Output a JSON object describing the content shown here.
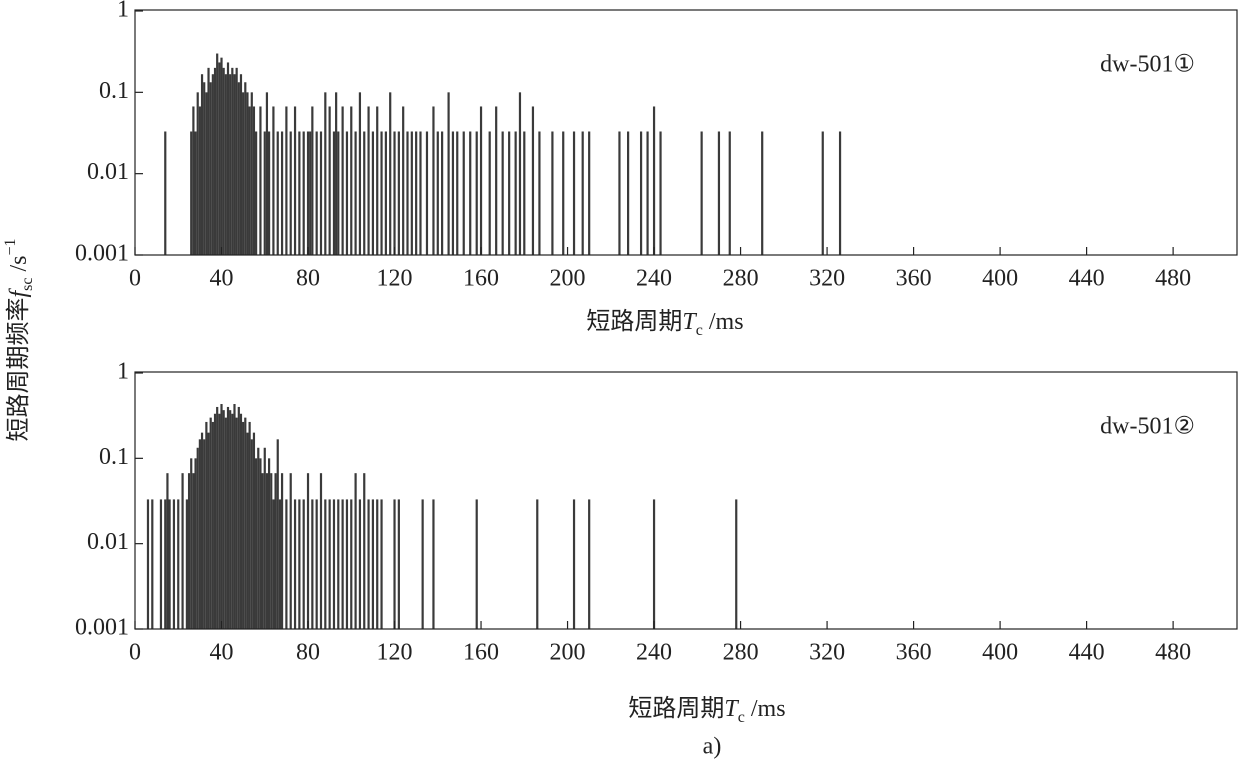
{
  "chart_data": [
    {
      "type": "bar",
      "annotation": "dw-501①",
      "xlabel": [
        "短路周期",
        "T",
        "c",
        " /ms"
      ],
      "color": "#3a3a3a",
      "log_y": true,
      "xlim": [
        0,
        510
      ],
      "xticks": [
        0,
        40,
        80,
        120,
        160,
        200,
        240,
        280,
        320,
        360,
        400,
        440,
        480
      ],
      "ylim": [
        0.001,
        1
      ],
      "yticks": [
        0.001,
        0.01,
        0.1,
        1
      ],
      "x": [
        14,
        26,
        27,
        28,
        29,
        30,
        31,
        32,
        33,
        34,
        35,
        36,
        37,
        38,
        39,
        40,
        41,
        42,
        43,
        44,
        45,
        46,
        47,
        48,
        49,
        50,
        51,
        52,
        53,
        54,
        55,
        56,
        58,
        60,
        61,
        62,
        64,
        66,
        68,
        70,
        72,
        74,
        76,
        78,
        80,
        81,
        82,
        84,
        86,
        88,
        90,
        92,
        93,
        94,
        96,
        98,
        100,
        102,
        104,
        106,
        108,
        110,
        112,
        114,
        116,
        118,
        120,
        122,
        124,
        126,
        128,
        130,
        132,
        135,
        138,
        140,
        142,
        145,
        147,
        149,
        152,
        155,
        158,
        160,
        164,
        167,
        170,
        173,
        176,
        178,
        180,
        184,
        187,
        193,
        198,
        203,
        207,
        210,
        224,
        228,
        234,
        237,
        240,
        243,
        262,
        270,
        275,
        290,
        318,
        326
      ],
      "values": [
        0.033,
        0.033,
        0.067,
        0.033,
        0.1,
        0.067,
        0.167,
        0.133,
        0.1,
        0.2,
        0.133,
        0.167,
        0.2,
        0.3,
        0.233,
        0.267,
        0.2,
        0.167,
        0.233,
        0.167,
        0.2,
        0.167,
        0.2,
        0.133,
        0.167,
        0.1,
        0.133,
        0.1,
        0.067,
        0.1,
        0.067,
        0.033,
        0.067,
        0.033,
        0.1,
        0.033,
        0.067,
        0.033,
        0.033,
        0.067,
        0.033,
        0.067,
        0.033,
        0.033,
        0.033,
        0.033,
        0.067,
        0.033,
        0.033,
        0.1,
        0.067,
        0.033,
        0.1,
        0.033,
        0.067,
        0.033,
        0.067,
        0.033,
        0.1,
        0.033,
        0.067,
        0.033,
        0.067,
        0.033,
        0.033,
        0.1,
        0.033,
        0.033,
        0.067,
        0.033,
        0.033,
        0.033,
        0.033,
        0.033,
        0.067,
        0.033,
        0.033,
        0.1,
        0.033,
        0.033,
        0.033,
        0.033,
        0.033,
        0.067,
        0.033,
        0.067,
        0.033,
        0.033,
        0.033,
        0.1,
        0.033,
        0.067,
        0.033,
        0.033,
        0.033,
        0.033,
        0.033,
        0.033,
        0.033,
        0.033,
        0.033,
        0.033,
        0.067,
        0.033,
        0.033,
        0.033,
        0.033,
        0.033,
        0.033,
        0.033
      ]
    },
    {
      "type": "bar",
      "annotation": "dw-501②",
      "xlabel": [
        "短路周期",
        "T",
        "c",
        " /ms"
      ],
      "color": "#3a3a3a",
      "log_y": true,
      "xlim": [
        0,
        510
      ],
      "xticks": [
        0,
        40,
        80,
        120,
        160,
        200,
        240,
        280,
        320,
        360,
        400,
        440,
        480
      ],
      "ylim": [
        0.001,
        1
      ],
      "yticks": [
        0.001,
        0.01,
        0.1,
        1
      ],
      "x": [
        6,
        8,
        12,
        14,
        15,
        16,
        18,
        20,
        22,
        24,
        25,
        26,
        27,
        28,
        29,
        30,
        31,
        32,
        33,
        34,
        35,
        36,
        37,
        38,
        39,
        40,
        41,
        42,
        43,
        44,
        45,
        46,
        47,
        48,
        49,
        50,
        51,
        52,
        53,
        54,
        55,
        56,
        57,
        58,
        59,
        60,
        61,
        62,
        63,
        64,
        65,
        66,
        67,
        68,
        70,
        72,
        74,
        76,
        78,
        80,
        82,
        84,
        86,
        88,
        90,
        92,
        94,
        96,
        98,
        100,
        102,
        104,
        106,
        108,
        110,
        112,
        114,
        120,
        122,
        133,
        138,
        158,
        186,
        203,
        210,
        240,
        278
      ],
      "values": [
        0.033,
        0.033,
        0.033,
        0.033,
        0.067,
        0.033,
        0.033,
        0.033,
        0.067,
        0.033,
        0.067,
        0.1,
        0.067,
        0.1,
        0.133,
        0.167,
        0.2,
        0.167,
        0.267,
        0.2,
        0.3,
        0.267,
        0.333,
        0.4,
        0.333,
        0.433,
        0.367,
        0.3,
        0.4,
        0.367,
        0.333,
        0.433,
        0.3,
        0.4,
        0.333,
        0.267,
        0.3,
        0.2,
        0.267,
        0.167,
        0.2,
        0.1,
        0.133,
        0.1,
        0.067,
        0.133,
        0.067,
        0.1,
        0.067,
        0.033,
        0.067,
        0.167,
        0.033,
        0.067,
        0.033,
        0.067,
        0.033,
        0.033,
        0.033,
        0.067,
        0.033,
        0.033,
        0.067,
        0.033,
        0.033,
        0.033,
        0.033,
        0.033,
        0.033,
        0.033,
        0.067,
        0.033,
        0.067,
        0.033,
        0.033,
        0.033,
        0.033,
        0.033,
        0.033,
        0.033,
        0.033,
        0.033,
        0.033,
        0.033,
        0.033,
        0.033,
        0.033
      ]
    }
  ],
  "ylabel": [
    "短路周期频率",
    "f",
    "sc",
    " /s",
    "−1"
  ],
  "caption": "a)"
}
